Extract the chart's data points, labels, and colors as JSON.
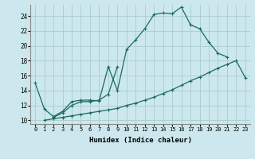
{
  "title": "",
  "xlabel": "Humidex (Indice chaleur)",
  "bg_color": "#cce8ee",
  "grid_color": "#aacccc",
  "line_color": "#1a6b5e",
  "xlim": [
    -0.5,
    23.5
  ],
  "ylim": [
    9.5,
    25.5
  ],
  "xticks": [
    0,
    1,
    2,
    3,
    4,
    5,
    6,
    7,
    8,
    9,
    10,
    11,
    12,
    13,
    14,
    15,
    16,
    17,
    18,
    19,
    20,
    21,
    22,
    23
  ],
  "yticks": [
    10,
    12,
    14,
    16,
    18,
    20,
    22,
    24
  ],
  "line1_x": [
    0,
    1,
    2,
    3,
    4,
    5,
    6,
    7,
    8,
    9,
    10,
    11,
    12,
    13,
    14,
    15,
    16,
    17,
    18,
    19,
    20,
    21
  ],
  "line1_y": [
    15.0,
    11.5,
    10.5,
    11.2,
    12.5,
    12.7,
    12.7,
    12.6,
    17.2,
    14.0,
    19.5,
    20.8,
    22.3,
    24.2,
    24.4,
    24.3,
    25.2,
    22.8,
    22.3,
    20.5,
    19.0,
    18.5
  ],
  "line2_x": [
    2,
    3,
    4,
    5,
    6,
    7,
    8,
    9
  ],
  "line2_y": [
    10.4,
    11.0,
    12.0,
    12.5,
    12.5,
    12.7,
    13.5,
    17.2
  ],
  "line3_x": [
    1,
    2,
    3,
    4,
    5,
    6,
    7,
    8,
    9,
    10,
    11,
    12,
    13,
    14,
    15,
    16,
    17,
    18,
    19,
    20,
    21,
    22,
    23
  ],
  "line3_y": [
    10.0,
    10.2,
    10.4,
    10.6,
    10.8,
    11.0,
    11.2,
    11.4,
    11.6,
    12.0,
    12.3,
    12.7,
    13.1,
    13.6,
    14.1,
    14.7,
    15.3,
    15.8,
    16.4,
    17.0,
    17.5,
    18.0,
    15.7
  ]
}
